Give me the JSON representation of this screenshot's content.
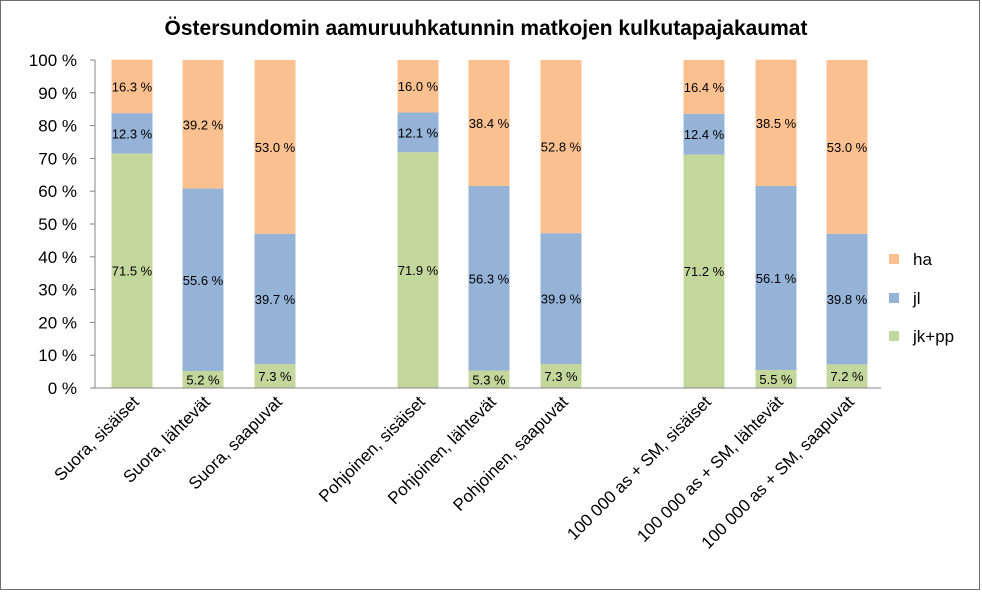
{
  "chart_data": {
    "type": "bar",
    "stacked": true,
    "percent": true,
    "title": "Östersundomin aamuruuhkatunnin  matkojen kulkutapajakaumat",
    "categories": [
      "Suora, sisäiset",
      "Suora,  lähtevät",
      "Suora, saapuvat",
      "Pohjoinen, sisäiset",
      "Pohjoinen,  lähtevät",
      "Pohjoinen, saapuvat",
      "100 000 as + SM, sisäiset",
      "100 000 as + SM, lähtevät",
      "100 000 as + SM, saapuvat"
    ],
    "series": [
      {
        "name": "jk+pp",
        "color": "#c3d69b",
        "values": [
          71.5,
          5.2,
          7.3,
          71.9,
          5.3,
          7.3,
          71.2,
          5.5,
          7.2
        ],
        "labels": [
          "71.5 %",
          "5.2 %",
          "7.3 %",
          "71.9 %",
          "5.3 %",
          "7.3 %",
          "71.2 %",
          "5.5 %",
          "7.2 %"
        ]
      },
      {
        "name": "jl",
        "color": "#95b3d7",
        "values": [
          12.3,
          55.6,
          39.7,
          12.1,
          56.3,
          39.9,
          12.4,
          56.1,
          39.8
        ],
        "labels": [
          "12.3 %",
          "55.6 %",
          "39.7 %",
          "12.1 %",
          "56.3 %",
          "39.9 %",
          "12.4 %",
          "56.1 %",
          "39.8 %"
        ]
      },
      {
        "name": "ha",
        "color": "#fac090",
        "values": [
          16.3,
          39.2,
          53.0,
          16.0,
          38.4,
          52.8,
          16.4,
          38.5,
          53.0
        ],
        "labels": [
          "16.3 %",
          "39.2 %",
          "53.0 %",
          "16.0 %",
          "38.4 %",
          "52.8 %",
          "16.4 %",
          "38.5 %",
          "53.0 %"
        ]
      }
    ],
    "yticks": [
      "0 %",
      "10 %",
      "20 %",
      "30 %",
      "40 %",
      "50 %",
      "60 %",
      "70 %",
      "80 %",
      "90 %",
      "100 %"
    ],
    "ylim": [
      0,
      100
    ],
    "legend": {
      "placement": "right",
      "entries": [
        {
          "name": "ha",
          "color": "#fac090"
        },
        {
          "name": "jl",
          "color": "#95b3d7"
        },
        {
          "name": "jk+pp",
          "color": "#c3d69b"
        }
      ]
    },
    "grid": false
  }
}
